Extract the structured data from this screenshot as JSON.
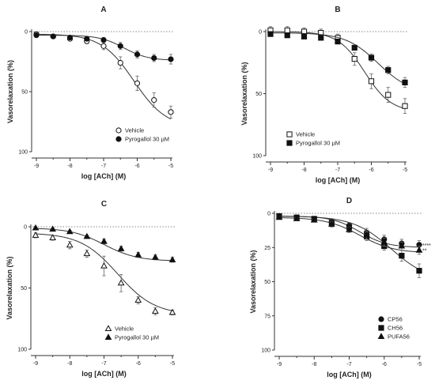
{
  "chart_data": [
    {
      "panel": "A",
      "type": "line",
      "title": "A",
      "xlabel": "log [ACh] (M)",
      "ylabel": "Vasorelaxation (%)",
      "xlim": [
        -9,
        -5
      ],
      "ylim": [
        0,
        100
      ],
      "y_inverted": true,
      "x_ticks": [
        "-9",
        "-8",
        "-7",
        "-6",
        "-5"
      ],
      "y_ticks": [
        "0",
        "50",
        "100"
      ],
      "reference_line": 0,
      "legend_position": "bottom-center",
      "x": [
        -9,
        -8.5,
        -8,
        -7.5,
        -7,
        -6.5,
        -6,
        -5.5,
        -5
      ],
      "series": [
        {
          "name": "Vehicle",
          "marker": "open-circle",
          "values": [
            2,
            4,
            6,
            8,
            12,
            26,
            43,
            57,
            67
          ],
          "err": [
            1,
            1,
            1.5,
            2,
            3,
            5,
            6,
            6,
            5
          ],
          "curve": {
            "bottom": 2,
            "top": 80,
            "ec50": -6.1,
            "hill": 0.9
          }
        },
        {
          "name": "Pyrogallol 30 µM",
          "marker": "filled-circle",
          "values": [
            3,
            4,
            5,
            6,
            7,
            12,
            19,
            22,
            23
          ],
          "err": [
            1,
            1,
            1,
            1.5,
            2,
            3,
            3,
            3,
            4
          ],
          "curve": {
            "bottom": 3,
            "top": 24,
            "ec50": -6.4,
            "hill": 1.2
          }
        }
      ]
    },
    {
      "panel": "B",
      "type": "line",
      "title": "B",
      "xlabel": "log [ACh] (M)",
      "ylabel": "Vasorelaxation (%)",
      "xlim": [
        -9,
        -5
      ],
      "ylim": [
        0,
        100
      ],
      "y_inverted": true,
      "x_ticks": [
        "-9",
        "-8",
        "-7",
        "-6",
        "-5"
      ],
      "y_ticks": [
        "0",
        "50",
        "100"
      ],
      "reference_line": 0,
      "legend_position": "bottom-center",
      "x": [
        -9,
        -8.5,
        -8,
        -7.5,
        -7,
        -6.5,
        -6,
        -5.5,
        -5
      ],
      "series": [
        {
          "name": "Vehicle",
          "marker": "open-square",
          "values": [
            -1,
            -1,
            0,
            1,
            5,
            22,
            40,
            51,
            60
          ],
          "err": [
            3,
            3,
            3,
            3,
            3,
            5,
            6,
            6,
            6
          ],
          "curve": {
            "bottom": 0,
            "top": 65,
            "ec50": -6.2,
            "hill": 1.1
          }
        },
        {
          "name": "Pyrogallol 30 µM",
          "marker": "filled-square",
          "values": [
            2,
            3,
            4,
            5,
            8,
            13,
            21,
            31,
            41
          ],
          "err": [
            1,
            1,
            1,
            1,
            2,
            2,
            3,
            3,
            4
          ],
          "curve": {
            "bottom": 1,
            "top": 50,
            "ec50": -5.8,
            "hill": 0.9
          }
        }
      ]
    },
    {
      "panel": "C",
      "type": "line",
      "title": "C",
      "xlabel": "log [ACh] (M)",
      "ylabel": "Vasorelaxation (%)",
      "xlim": [
        -9,
        -5
      ],
      "ylim": [
        0,
        100
      ],
      "y_inverted": true,
      "x_ticks": [
        "-9",
        "-8",
        "-7",
        "-6",
        "-5"
      ],
      "y_ticks": [
        "0",
        "50",
        "100"
      ],
      "reference_line": 0,
      "legend_position": "bottom-center",
      "x": [
        -9,
        -8.5,
        -8,
        -7.5,
        -7,
        -6.5,
        -6,
        -5.5,
        -5
      ],
      "series": [
        {
          "name": "Vehicle",
          "marker": "open-triangle",
          "values": [
            7,
            9,
            15,
            22,
            32,
            46,
            60,
            69,
            70
          ],
          "err": [
            2,
            2,
            3,
            3,
            8,
            7,
            3,
            3,
            2
          ],
          "curve": {
            "bottom": 5,
            "top": 72,
            "ec50": -6.6,
            "hill": 0.8
          }
        },
        {
          "name": "Pyrogallol 30 µM",
          "marker": "filled-triangle",
          "values": [
            1,
            2,
            4,
            8,
            12,
            18,
            23,
            25,
            27
          ],
          "err": [
            1,
            1,
            1,
            1,
            2,
            2,
            2,
            2,
            2
          ],
          "curve": {
            "bottom": 1,
            "top": 28,
            "ec50": -7.0,
            "hill": 0.9
          }
        }
      ]
    },
    {
      "panel": "D",
      "type": "line",
      "title": "D",
      "xlabel": "log [ACh] (M)",
      "ylabel": "Vasorelaxation (%)",
      "xlim": [
        -9,
        -5
      ],
      "ylim": [
        0,
        100
      ],
      "y_inverted": true,
      "x_ticks": [
        "-9",
        "-8",
        "-7",
        "-6",
        "-5"
      ],
      "y_ticks": [
        "0",
        "25",
        "50",
        "75",
        "100"
      ],
      "reference_line": 0,
      "legend_position": "bottom-right",
      "x": [
        -9,
        -8.5,
        -8,
        -7.5,
        -7,
        -6.5,
        -6,
        -5.5,
        -5
      ],
      "annotations": [
        "****",
        "**"
      ],
      "series": [
        {
          "name": "CP56",
          "marker": "filled-circle",
          "values": [
            2,
            3,
            4,
            6,
            9,
            14,
            19,
            22,
            23
          ],
          "err": [
            1,
            1,
            1,
            2,
            2,
            3,
            3,
            3,
            3
          ],
          "curve": {
            "bottom": 2,
            "top": 25,
            "ec50": -6.7,
            "hill": 1.1
          }
        },
        {
          "name": "CH56",
          "marker": "filled-square",
          "values": [
            2,
            3,
            4,
            7,
            10,
            17,
            24,
            31,
            42
          ],
          "err": [
            1,
            1,
            1,
            2,
            2,
            3,
            3,
            4,
            5
          ],
          "curve": {
            "bottom": 2,
            "top": 50,
            "ec50": -5.8,
            "hill": 0.8
          }
        },
        {
          "name": "PUFA56",
          "marker": "filled-triangle",
          "values": [
            3,
            4,
            5,
            8,
            12,
            16,
            21,
            24,
            27
          ],
          "err": [
            1,
            1,
            1,
            2,
            2,
            3,
            3,
            3,
            3
          ],
          "curve": {
            "bottom": 3,
            "top": 29,
            "ec50": -6.7,
            "hill": 0.9
          }
        }
      ]
    }
  ]
}
